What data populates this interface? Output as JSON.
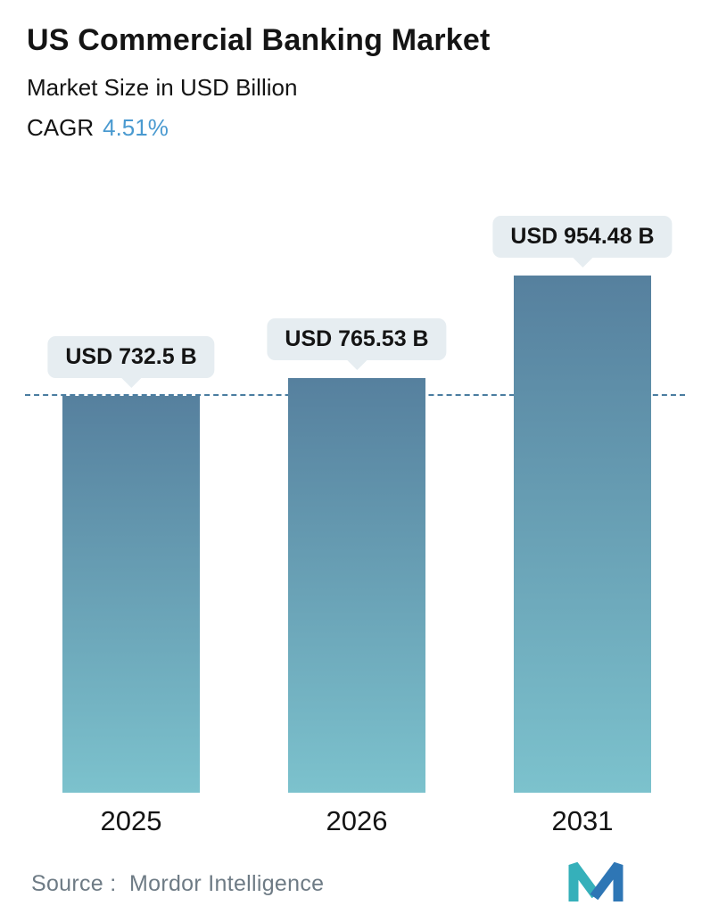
{
  "header": {
    "title": "US Commercial Banking Market",
    "subtitle": "Market Size in USD Billion",
    "cagr_label": "CAGR",
    "cagr_value": "4.51%"
  },
  "chart_data": {
    "type": "bar",
    "categories": [
      "2025",
      "2026",
      "2031"
    ],
    "values": [
      732.5,
      765.53,
      954.48
    ],
    "value_labels": [
      "USD 732.5 B",
      "USD 765.53 B",
      "USD 954.48 B"
    ],
    "title": "US Commercial Banking Market",
    "xlabel": "",
    "ylabel": "Market Size in USD Billion",
    "ylim": [
      0,
      1000
    ],
    "reference_line": 732.5,
    "grid": "off",
    "legend": "off"
  },
  "footer": {
    "source_label": "Source :",
    "source_value": "Mordor Intelligence"
  },
  "colors": {
    "bar_top": "#56809e",
    "bar_bottom": "#7cc2cd",
    "accent_blue": "#4a9ad0",
    "dashed_line": "#4a7da0",
    "label_bg": "#e6edf1",
    "text_dark": "#141414",
    "source_text": "#6e7b85",
    "logo_teal": "#35b0ba",
    "logo_blue": "#2e76b5"
  }
}
